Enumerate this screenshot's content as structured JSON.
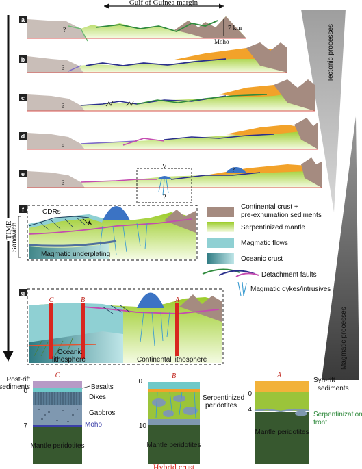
{
  "header": {
    "margin_label": "Gulf of Guinea margin",
    "scale_label": "7 km",
    "moho_label": "Moho"
  },
  "time_label": "TIME",
  "stages": [
    {
      "label": "a"
    },
    {
      "label": "b"
    },
    {
      "label": "c"
    },
    {
      "label": "d"
    },
    {
      "label": "e"
    }
  ],
  "unknown_mark": "?",
  "stage_e": {
    "v_label": "V"
  },
  "panel_f": {
    "label": "f",
    "cdrs": "CDRs",
    "sandwich": "Sandwich",
    "underplating": "Magmatic underplating"
  },
  "panel_g": {
    "label": "g",
    "oceanic": "Oceanic\nlithosphere",
    "oceanic_l1": "Oceanic",
    "oceanic_l2": "lithosphere",
    "continental": "Continental lithosphere",
    "cuts": [
      "C",
      "B",
      "A"
    ]
  },
  "legend": {
    "items": [
      {
        "label_l1": "Continental crust +",
        "label_l2": "pre-exhumation sediments",
        "color": "#a58b80"
      },
      {
        "label_l1": "Serpentinized mantle",
        "label_l2": "",
        "color": "#b9dc4c"
      },
      {
        "label_l1": "Magmatic flows",
        "label_l2": "",
        "color": "#8fd0d3"
      },
      {
        "label_l1": "Oceanic crust",
        "label_l2": "",
        "color": "#3f8d94"
      },
      {
        "label_l1": "Detachment faults",
        "label_l2": "",
        "color": "#6a2fa0"
      },
      {
        "label_l1": "Magmatic dykes/intrusives",
        "label_l2": "",
        "color": "#3a9bd0"
      }
    ]
  },
  "processes": {
    "tectonic": "Tectonic processes",
    "magmatic": "Magmatic processes"
  },
  "columns": {
    "C": {
      "title": "C",
      "post_rift": "Post-rift",
      "sediments": "sediments",
      "basalts": "Basalts",
      "dikes": "Dikes",
      "gabbros": "Gabbros",
      "moho": "Moho",
      "mantle": "Mantle peridotites",
      "depth0": "0",
      "depth7": "7"
    },
    "B": {
      "title": "B",
      "serp1": "Serpentinized",
      "serp2": "peridotites",
      "mantle": "Mantle peridotites",
      "depth0": "0",
      "depth10": "10",
      "caption": "Hybrid crust"
    },
    "A": {
      "title": "A",
      "syn1": "Syn-rift",
      "syn2": "sediments",
      "front1": "Serpentinization",
      "front2": "front",
      "mantle": "Mantle peridotites",
      "depth0": "0",
      "depth4": "4"
    }
  }
}
